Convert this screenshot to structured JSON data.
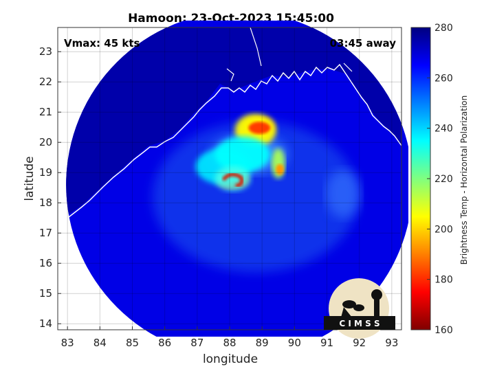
{
  "chart_data": {
    "type": "heatmap",
    "title": "Hamoon: 23-Oct-2023 15:45:00",
    "xlabel": "longitude",
    "ylabel": "latitude",
    "xlim": [
      82.7,
      93.3
    ],
    "ylim": [
      13.8,
      23.8
    ],
    "x_ticks": [
      83,
      84,
      85,
      86,
      87,
      88,
      89,
      90,
      91,
      92,
      93
    ],
    "y_ticks": [
      14,
      15,
      16,
      17,
      18,
      19,
      20,
      21,
      22,
      23
    ],
    "grid": true,
    "annotations": {
      "vmax": "Vmax: 45 kts",
      "away": "03:45 away"
    },
    "colorbar": {
      "label": "Brightness Temp - Horizontal Polarization",
      "range": [
        160,
        280
      ],
      "ticks": [
        280,
        260,
        240,
        220,
        200,
        180,
        160
      ],
      "colormap": "jet"
    },
    "storm_center": {
      "lon": 88.1,
      "lat": 18.8
    },
    "swath_center": {
      "lon": 88.3,
      "lat": 18.6
    },
    "features": [
      {
        "lon": 88.1,
        "lat": 18.8,
        "value": 180
      },
      {
        "lon": 88.9,
        "lat": 20.5,
        "value": 190
      },
      {
        "lon": 88.8,
        "lat": 20.4,
        "value": 205
      },
      {
        "lon": 89.5,
        "lat": 19.3,
        "value": 215
      },
      {
        "lon": 87.8,
        "lat": 19.2,
        "value": 238
      },
      {
        "lon": 88.4,
        "lat": 19.6,
        "value": 235
      }
    ],
    "background_value": 268,
    "land_value": 275
  },
  "logo": {
    "text": "C I M S S"
  },
  "colors": {
    "land": "#0c1f8c",
    "sea": "#1a48e8",
    "coast": "#ffffff"
  }
}
